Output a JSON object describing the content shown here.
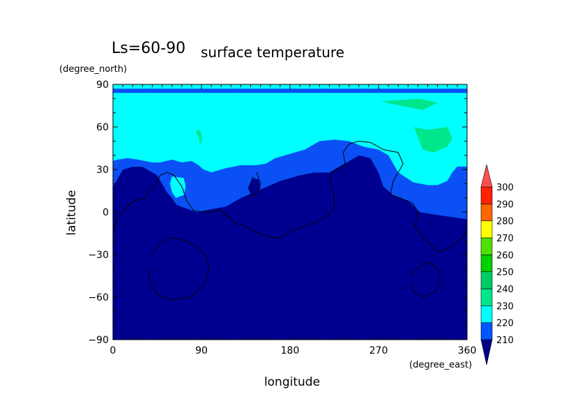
{
  "chart_data": {
    "type": "heatmap",
    "subtype": "filled contour map",
    "title_left": "Ls=60-90",
    "title": "surface temperature",
    "xlabel": "longitude",
    "ylabel": "latitude",
    "x_units": "(degree_east)",
    "y_units": "(degree_north)",
    "xlim": [
      0,
      360
    ],
    "ylim": [
      -90,
      90
    ],
    "xticks": [
      0,
      90,
      180,
      270,
      360
    ],
    "yticks": [
      -90,
      -60,
      -30,
      0,
      30,
      60,
      90
    ],
    "colorbar": {
      "levels": [
        210,
        220,
        230,
        240,
        250,
        260,
        270,
        280,
        290,
        300
      ],
      "colors": [
        "#00008b",
        "#0055ff",
        "#00ffff",
        "#00e68c",
        "#00cc66",
        "#00d000",
        "#4fe000",
        "#ffff00",
        "#ff6600",
        "#ff2200",
        "#ff5050"
      ],
      "extend": "both"
    },
    "regions": [
      {
        "band": "<210",
        "color": "#000090",
        "outline": [
          [
            0,
            -90
          ],
          [
            360,
            -90
          ],
          [
            360,
            -5
          ],
          [
            340,
            -3
          ],
          [
            330,
            -2
          ],
          [
            312,
            0
          ],
          [
            300,
            8
          ],
          [
            285,
            12
          ],
          [
            275,
            18
          ],
          [
            270,
            28
          ],
          [
            262,
            38
          ],
          [
            250,
            40
          ],
          [
            240,
            36
          ],
          [
            220,
            28
          ],
          [
            205,
            28
          ],
          [
            190,
            26
          ],
          [
            170,
            22
          ],
          [
            150,
            16
          ],
          [
            130,
            10
          ],
          [
            115,
            4
          ],
          [
            100,
            2
          ],
          [
            85,
            0
          ],
          [
            65,
            5
          ],
          [
            60,
            10
          ],
          [
            55,
            14
          ],
          [
            50,
            20
          ],
          [
            45,
            26
          ],
          [
            30,
            32
          ],
          [
            20,
            32
          ],
          [
            10,
            30
          ],
          [
            5,
            24
          ],
          [
            0,
            18
          ]
        ]
      },
      {
        "band": "210-220",
        "color": "#0a50f5",
        "outline": [
          [
            0,
            18
          ],
          [
            5,
            24
          ],
          [
            10,
            30
          ],
          [
            20,
            32
          ],
          [
            30,
            32
          ],
          [
            45,
            26
          ],
          [
            50,
            20
          ],
          [
            55,
            14
          ],
          [
            60,
            10
          ],
          [
            65,
            5
          ],
          [
            85,
            0
          ],
          [
            100,
            2
          ],
          [
            115,
            4
          ],
          [
            130,
            10
          ],
          [
            150,
            16
          ],
          [
            170,
            22
          ],
          [
            190,
            26
          ],
          [
            205,
            28
          ],
          [
            220,
            28
          ],
          [
            240,
            36
          ],
          [
            250,
            40
          ],
          [
            262,
            38
          ],
          [
            270,
            28
          ],
          [
            275,
            18
          ],
          [
            285,
            12
          ],
          [
            300,
            8
          ],
          [
            312,
            0
          ],
          [
            330,
            -2
          ],
          [
            340,
            -3
          ],
          [
            360,
            -5
          ],
          [
            360,
            32
          ],
          [
            350,
            32
          ],
          [
            345,
            28
          ],
          [
            340,
            22
          ],
          [
            330,
            19
          ],
          [
            320,
            19
          ],
          [
            305,
            21
          ],
          [
            290,
            28
          ],
          [
            280,
            40
          ],
          [
            270,
            44
          ],
          [
            255,
            46
          ],
          [
            240,
            50
          ],
          [
            225,
            51
          ],
          [
            210,
            50
          ],
          [
            195,
            44
          ],
          [
            175,
            40
          ],
          [
            165,
            38
          ],
          [
            155,
            34
          ],
          [
            145,
            33
          ],
          [
            130,
            33
          ],
          [
            115,
            31
          ],
          [
            100,
            28
          ],
          [
            92,
            30
          ],
          [
            87,
            33
          ],
          [
            80,
            36
          ],
          [
            70,
            35
          ],
          [
            60,
            37
          ],
          [
            48,
            35
          ],
          [
            40,
            35
          ],
          [
            25,
            37
          ],
          [
            15,
            38
          ],
          [
            5,
            37
          ],
          [
            0,
            36
          ]
        ]
      },
      {
        "band": "210-220",
        "color": "#0a50f5",
        "outline": [
          [
            0,
            84
          ],
          [
            360,
            84
          ],
          [
            360,
            87
          ],
          [
            0,
            87
          ]
        ]
      },
      {
        "band": "<210",
        "color": "#000090",
        "outline": [
          [
            137,
            17
          ],
          [
            140,
            13
          ],
          [
            146,
            13
          ],
          [
            150,
            17
          ],
          [
            148,
            23
          ],
          [
            142,
            24
          ]
        ]
      },
      {
        "band": "220-230",
        "color": "#00ffff",
        "outline": [
          [
            60,
            25
          ],
          [
            58,
            20
          ],
          [
            60,
            14
          ],
          [
            64,
            10
          ],
          [
            72,
            12
          ],
          [
            74,
            18
          ],
          [
            72,
            24
          ]
        ]
      },
      {
        "band": "230-240",
        "color": "#00e68c",
        "outline": [
          [
            272,
            78
          ],
          [
            292,
            75
          ],
          [
            315,
            72
          ],
          [
            330,
            77
          ],
          [
            312,
            80
          ]
        ]
      },
      {
        "band": "230-240",
        "color": "#00e68c",
        "outline": [
          [
            306,
            60
          ],
          [
            320,
            58
          ],
          [
            340,
            60
          ],
          [
            345,
            52
          ],
          [
            340,
            46
          ],
          [
            326,
            42
          ],
          [
            315,
            44
          ]
        ]
      },
      {
        "band": "230-240",
        "color": "#00e68c",
        "outline": [
          [
            84,
            57
          ],
          [
            87,
            53
          ],
          [
            89,
            47
          ],
          [
            91,
            52
          ],
          [
            88,
            58
          ]
        ]
      }
    ],
    "coastlines": [
      [
        [
          0,
          -14
        ],
        [
          5,
          -4
        ],
        [
          10,
          0
        ],
        [
          15,
          4
        ],
        [
          22,
          8
        ],
        [
          32,
          10
        ],
        [
          42,
          18
        ],
        [
          48,
          26
        ],
        [
          55,
          28
        ],
        [
          62,
          26
        ],
        [
          70,
          18
        ],
        [
          75,
          8
        ],
        [
          82,
          1
        ],
        [
          92,
          0
        ],
        [
          102,
          0
        ],
        [
          108,
          2
        ],
        [
          115,
          -2
        ],
        [
          125,
          -8
        ],
        [
          135,
          -10
        ],
        [
          145,
          -14
        ],
        [
          160,
          -18
        ],
        [
          170,
          -18
        ],
        [
          180,
          -14
        ],
        [
          195,
          -10
        ],
        [
          210,
          -6
        ],
        [
          220,
          -2
        ],
        [
          225,
          4
        ],
        [
          225,
          12
        ],
        [
          220,
          20
        ],
        [
          222,
          28
        ],
        [
          232,
          32
        ],
        [
          236,
          34
        ],
        [
          234,
          42
        ],
        [
          240,
          48
        ],
        [
          250,
          50
        ],
        [
          262,
          49
        ],
        [
          275,
          44
        ],
        [
          290,
          42
        ],
        [
          295,
          34
        ],
        [
          285,
          22
        ],
        [
          282,
          12
        ],
        [
          292,
          10
        ],
        [
          305,
          6
        ],
        [
          310,
          0
        ],
        [
          307,
          -10
        ],
        [
          315,
          -18
        ],
        [
          322,
          -22
        ],
        [
          330,
          -28
        ],
        [
          340,
          -26
        ],
        [
          348,
          -22
        ],
        [
          355,
          -18
        ],
        [
          360,
          -13
        ]
      ],
      [
        [
          142,
          25
        ],
        [
          140,
          18
        ],
        [
          140,
          12
        ],
        [
          145,
          12
        ],
        [
          150,
          20
        ],
        [
          146,
          28
        ]
      ],
      [
        [
          40,
          -30
        ],
        [
          48,
          -22
        ],
        [
          60,
          -18
        ],
        [
          72,
          -20
        ],
        [
          85,
          -24
        ],
        [
          95,
          -32
        ],
        [
          98,
          -40
        ],
        [
          92,
          -52
        ],
        [
          78,
          -60
        ],
        [
          60,
          -62
        ],
        [
          45,
          -58
        ],
        [
          38,
          -50
        ],
        [
          36,
          -40
        ]
      ],
      [
        [
          303,
          -45
        ],
        [
          312,
          -38
        ],
        [
          320,
          -35
        ],
        [
          330,
          -40
        ],
        [
          333,
          -48
        ],
        [
          328,
          -56
        ],
        [
          315,
          -60
        ],
        [
          305,
          -56
        ],
        [
          302,
          -50
        ]
      ]
    ]
  }
}
